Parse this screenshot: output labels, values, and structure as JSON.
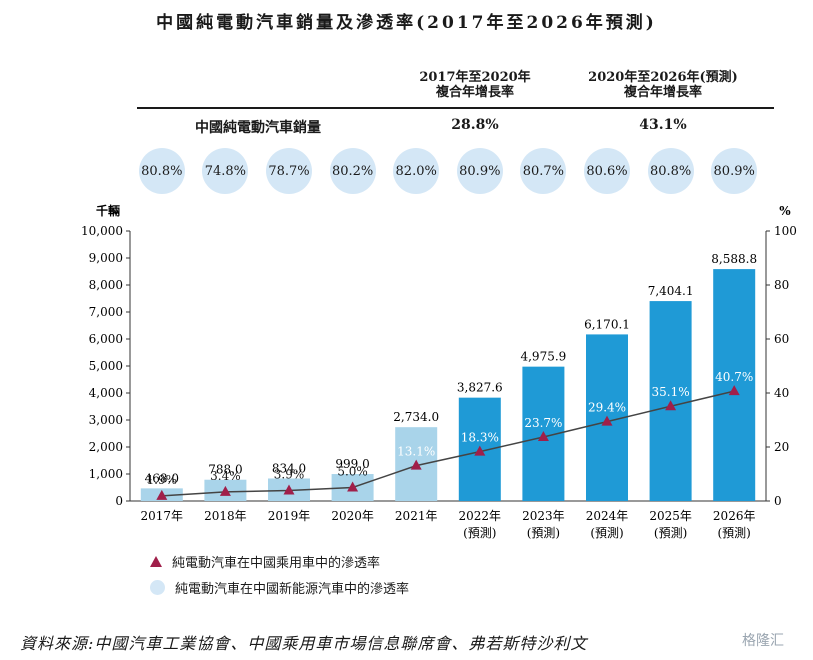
{
  "title": "中國純電動汽車銷量及滲透率(2017年至2026年預測)",
  "cagr_table": {
    "col1_header": [
      "2017年至2020年",
      "複合年增長率"
    ],
    "col2_header": [
      "2020年至2026年(預測)",
      "複合年增長率"
    ],
    "row_label": "中國純電動汽車銷量",
    "col1_value": "28.8%",
    "col2_value": "43.1%"
  },
  "bubble_values": [
    "80.8%",
    "74.8%",
    "78.7%",
    "80.2%",
    "82.0%",
    "80.9%",
    "80.7%",
    "80.6%",
    "80.8%",
    "80.9%"
  ],
  "colors": {
    "hist_bar": "#a9d4ea",
    "forecast_bar": "#1f9ad6",
    "line": "#444444",
    "marker": "#a01f4a",
    "bubble": "#d4e7f6"
  },
  "chart_data": {
    "type": "bar",
    "y_left_unit": "千輛",
    "y_right_unit": "%",
    "ylim_left": [
      0,
      10000
    ],
    "yticks_left": [
      "0",
      "1,000",
      "2,000",
      "3,000",
      "4,000",
      "5,000",
      "6,000",
      "7,000",
      "8,000",
      "9,000",
      "10,000"
    ],
    "ylim_right": [
      0,
      100
    ],
    "yticks_right": [
      "0",
      "20",
      "40",
      "60",
      "80",
      "100"
    ],
    "categories": [
      "2017年",
      "2018年",
      "2019年",
      "2020年",
      "2021年",
      "2022年",
      "2023年",
      "2024年",
      "2025年",
      "2026年"
    ],
    "forecast_sublabel": "(預測)",
    "forecast_flags": [
      false,
      false,
      false,
      false,
      false,
      true,
      true,
      true,
      true,
      true
    ],
    "series": [
      {
        "name": "純電動汽車在中國乘用車中的滲透率",
        "values": [
          1.9,
          3.4,
          3.9,
          5.0,
          13.1,
          18.3,
          23.7,
          29.4,
          35.1,
          40.7
        ]
      }
    ],
    "bar_values": [
      468.0,
      788.0,
      834.0,
      999.0,
      2734.0,
      3827.6,
      4975.9,
      6170.1,
      7404.1,
      8588.8
    ],
    "bar_labels": [
      "468.0",
      "788.0",
      "834.0",
      "999.0",
      "2,734.0",
      "3,827.6",
      "4,975.9",
      "6,170.1",
      "7,404.1",
      "8,588.8"
    ],
    "pct_labels": [
      "1.9%",
      "3.4%",
      "3.9%",
      "5.0%",
      "13.1%",
      "18.3%",
      "23.7%",
      "29.4%",
      "35.1%",
      "40.7%"
    ]
  },
  "legend": {
    "line_label": "純電動汽車在中國乘用車中的滲透率",
    "bubble_label": "純電動汽車在中國新能源汽車中的滲透率"
  },
  "source": "資料來源:中國汽車工業協會、中國乘用車市場信息聯席會、弗若斯特沙利文",
  "watermark": "格隆汇"
}
